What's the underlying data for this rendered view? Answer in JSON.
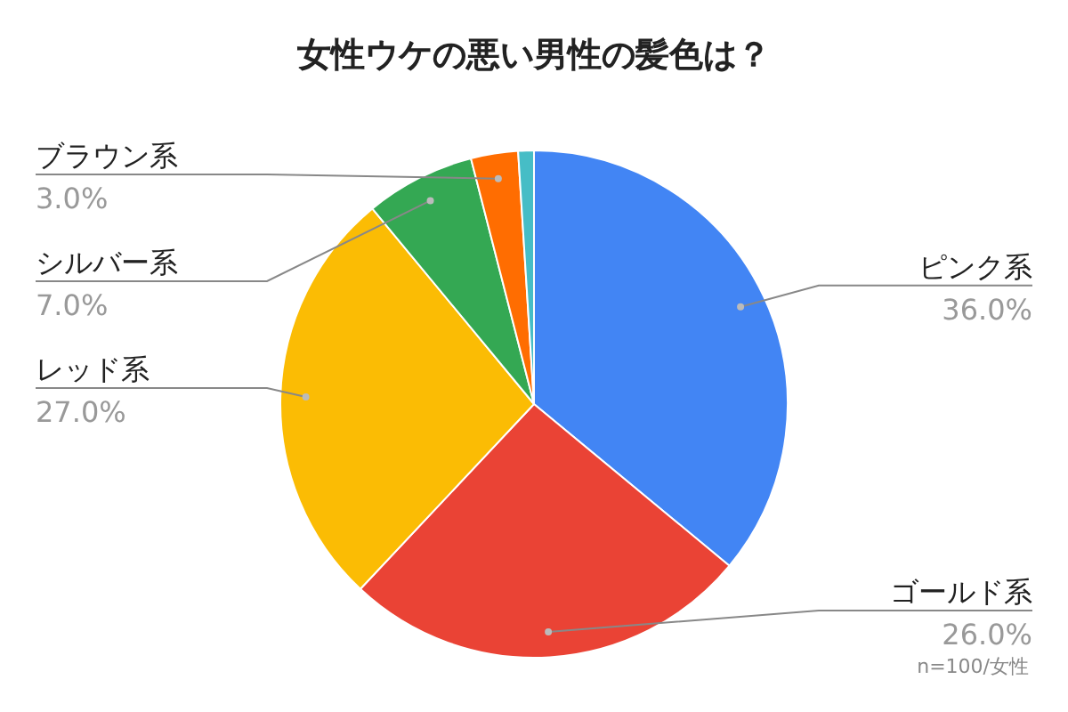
{
  "chart_data": {
    "type": "pie",
    "title": "女性ウケの悪い男性の髪色は？",
    "categories": [
      "ピンク系",
      "ゴールド系",
      "レッド系",
      "シルバー系",
      "ブラウン系",
      null
    ],
    "values": [
      36,
      26,
      27,
      7,
      3,
      1
    ],
    "value_labels": [
      "36.0%",
      "26.0%",
      "27.0%",
      "7.0%",
      "3.0%",
      null
    ],
    "colors": [
      "#4285f4",
      "#ea4335",
      "#fbbc04",
      "#34a853",
      "#ff6d01",
      "#46bdc6"
    ],
    "legend": false,
    "annotations": [
      "n=100/女性"
    ]
  }
}
